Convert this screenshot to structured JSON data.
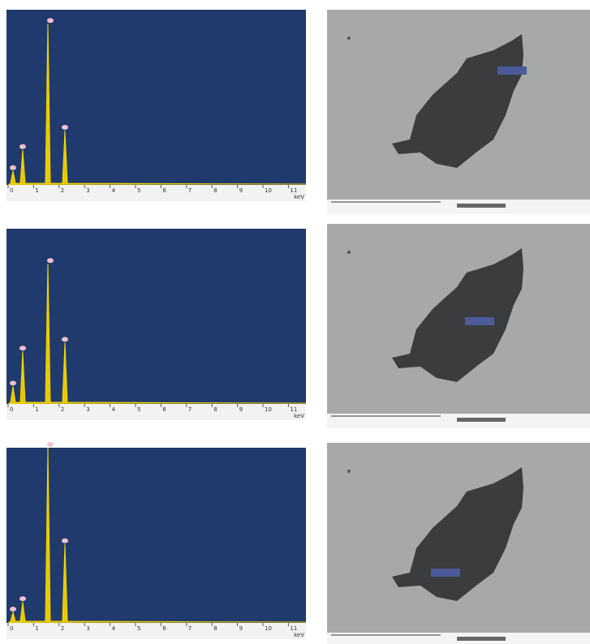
{
  "panels": [
    {
      "x_ticks": [
        0,
        1,
        2,
        3,
        4,
        5,
        6,
        7,
        8,
        9,
        10,
        11
      ],
      "x_unit": "keV"
    },
    {
      "x_ticks": [
        0,
        1,
        2,
        3,
        4,
        5,
        6,
        7,
        8,
        9,
        10,
        11
      ],
      "x_unit": "keV"
    },
    {
      "x_ticks": [
        0,
        1,
        2,
        3,
        4,
        5,
        6,
        7,
        8,
        9,
        10,
        11
      ],
      "x_unit": "keV"
    }
  ]
}
